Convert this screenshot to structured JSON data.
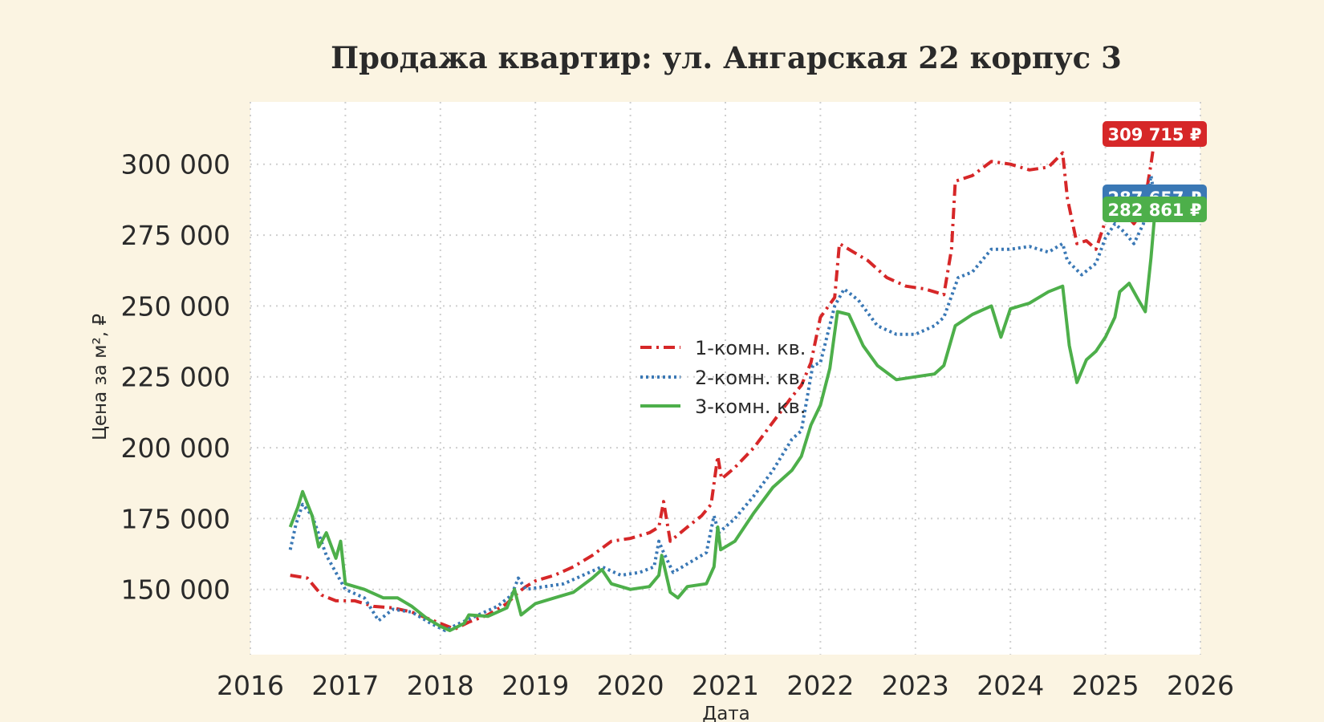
{
  "chart_data": {
    "type": "line",
    "title": "Продажа квартир: ул. Ангарская 22 корпус 3",
    "xlabel": "Дата",
    "ylabel": "Цена за м², ₽",
    "xlim": [
      2016,
      2026
    ],
    "ylim": [
      127000,
      322000
    ],
    "x_ticks": [
      2016,
      2017,
      2018,
      2019,
      2020,
      2021,
      2022,
      2023,
      2024,
      2025,
      2026
    ],
    "y_ticks": [
      150000,
      175000,
      200000,
      225000,
      250000,
      275000,
      300000
    ],
    "y_tick_labels": [
      "150 000",
      "175 000",
      "200 000",
      "225 000",
      "250 000",
      "275 000",
      "300 000"
    ],
    "x_tick_labels": [
      "2016",
      "2017",
      "2018",
      "2019",
      "2020",
      "2021",
      "2022",
      "2023",
      "2024",
      "2025",
      "2026"
    ],
    "grid": true,
    "legend_position": "center",
    "series": [
      {
        "name": "1-комн. кв.",
        "color": "#d62728",
        "style": "dash-dot",
        "last_label": "309 715 ₽",
        "points": [
          [
            2016.42,
            155000
          ],
          [
            2016.6,
            154000
          ],
          [
            2016.75,
            148000
          ],
          [
            2016.9,
            146000
          ],
          [
            2017.1,
            146000
          ],
          [
            2017.3,
            144000
          ],
          [
            2017.5,
            143500
          ],
          [
            2017.7,
            142000
          ],
          [
            2017.85,
            140000
          ],
          [
            2018.0,
            138000
          ],
          [
            2018.15,
            136000
          ],
          [
            2018.3,
            138500
          ],
          [
            2018.5,
            141000
          ],
          [
            2018.7,
            145000
          ],
          [
            2018.82,
            149000
          ],
          [
            2018.9,
            151000
          ],
          [
            2019.0,
            153000
          ],
          [
            2019.2,
            155000
          ],
          [
            2019.4,
            158000
          ],
          [
            2019.6,
            162000
          ],
          [
            2019.8,
            167000
          ],
          [
            2020.0,
            168000
          ],
          [
            2020.2,
            170000
          ],
          [
            2020.3,
            172000
          ],
          [
            2020.35,
            181000
          ],
          [
            2020.42,
            167000
          ],
          [
            2020.6,
            172000
          ],
          [
            2020.75,
            176000
          ],
          [
            2020.85,
            180000
          ],
          [
            2020.92,
            197000
          ],
          [
            2020.96,
            189000
          ],
          [
            2021.1,
            193000
          ],
          [
            2021.3,
            200000
          ],
          [
            2021.5,
            209000
          ],
          [
            2021.7,
            218000
          ],
          [
            2021.8,
            222000
          ],
          [
            2021.9,
            230000
          ],
          [
            2022.0,
            246000
          ],
          [
            2022.15,
            253000
          ],
          [
            2022.2,
            272000
          ],
          [
            2022.35,
            269000
          ],
          [
            2022.5,
            266000
          ],
          [
            2022.7,
            260000
          ],
          [
            2022.9,
            257000
          ],
          [
            2023.1,
            256000
          ],
          [
            2023.3,
            254000
          ],
          [
            2023.38,
            270000
          ],
          [
            2023.42,
            294000
          ],
          [
            2023.6,
            296000
          ],
          [
            2023.8,
            301000
          ],
          [
            2024.0,
            300000
          ],
          [
            2024.2,
            298000
          ],
          [
            2024.4,
            299000
          ],
          [
            2024.55,
            304000
          ],
          [
            2024.6,
            288000
          ],
          [
            2024.7,
            272000
          ],
          [
            2024.8,
            273000
          ],
          [
            2024.9,
            270000
          ],
          [
            2025.0,
            280000
          ],
          [
            2025.1,
            287000
          ],
          [
            2025.2,
            283000
          ],
          [
            2025.3,
            279000
          ],
          [
            2025.4,
            284000
          ],
          [
            2025.48,
            300000
          ],
          [
            2025.52,
            309715
          ]
        ]
      },
      {
        "name": "2-комн. кв.",
        "color": "#3a78b5",
        "style": "dotted",
        "last_label": "287 657 ₽",
        "points": [
          [
            2016.42,
            164000
          ],
          [
            2016.48,
            173000
          ],
          [
            2016.55,
            180000
          ],
          [
            2016.65,
            176000
          ],
          [
            2016.8,
            162000
          ],
          [
            2017.0,
            150000
          ],
          [
            2017.2,
            147000
          ],
          [
            2017.35,
            139000
          ],
          [
            2017.5,
            143000
          ],
          [
            2017.7,
            142000
          ],
          [
            2017.9,
            138000
          ],
          [
            2018.05,
            135500
          ],
          [
            2018.2,
            138000
          ],
          [
            2018.4,
            141000
          ],
          [
            2018.6,
            144000
          ],
          [
            2018.75,
            148000
          ],
          [
            2018.82,
            154000
          ],
          [
            2018.9,
            150000
          ],
          [
            2019.1,
            151000
          ],
          [
            2019.3,
            152000
          ],
          [
            2019.5,
            155000
          ],
          [
            2019.7,
            158000
          ],
          [
            2019.9,
            155000
          ],
          [
            2020.1,
            156000
          ],
          [
            2020.25,
            158000
          ],
          [
            2020.3,
            167000
          ],
          [
            2020.35,
            163000
          ],
          [
            2020.45,
            156000
          ],
          [
            2020.6,
            159000
          ],
          [
            2020.8,
            163000
          ],
          [
            2020.88,
            176000
          ],
          [
            2020.93,
            170000
          ],
          [
            2021.1,
            175000
          ],
          [
            2021.3,
            183000
          ],
          [
            2021.5,
            192000
          ],
          [
            2021.7,
            203000
          ],
          [
            2021.8,
            206000
          ],
          [
            2021.92,
            229000
          ],
          [
            2022.0,
            230000
          ],
          [
            2022.15,
            250000
          ],
          [
            2022.25,
            256000
          ],
          [
            2022.4,
            252000
          ],
          [
            2022.6,
            243000
          ],
          [
            2022.8,
            240000
          ],
          [
            2023.0,
            240000
          ],
          [
            2023.2,
            243000
          ],
          [
            2023.3,
            246000
          ],
          [
            2023.45,
            260000
          ],
          [
            2023.6,
            262000
          ],
          [
            2023.8,
            270000
          ],
          [
            2024.0,
            270000
          ],
          [
            2024.2,
            271000
          ],
          [
            2024.4,
            269000
          ],
          [
            2024.55,
            272000
          ],
          [
            2024.6,
            266000
          ],
          [
            2024.75,
            261000
          ],
          [
            2024.9,
            265000
          ],
          [
            2025.0,
            274000
          ],
          [
            2025.1,
            279000
          ],
          [
            2025.2,
            276000
          ],
          [
            2025.3,
            272000
          ],
          [
            2025.4,
            279000
          ],
          [
            2025.48,
            296000
          ],
          [
            2025.52,
            287657
          ]
        ]
      },
      {
        "name": "3-комн. кв.",
        "color": "#4daf4a",
        "style": "solid",
        "last_label": "282 861 ₽",
        "points": [
          [
            2016.42,
            172000
          ],
          [
            2016.5,
            179000
          ],
          [
            2016.55,
            184500
          ],
          [
            2016.65,
            176000
          ],
          [
            2016.72,
            165000
          ],
          [
            2016.8,
            170000
          ],
          [
            2016.9,
            161000
          ],
          [
            2016.95,
            167000
          ],
          [
            2017.0,
            152000
          ],
          [
            2017.2,
            150000
          ],
          [
            2017.4,
            147000
          ],
          [
            2017.55,
            147000
          ],
          [
            2017.7,
            144000
          ],
          [
            2017.85,
            140000
          ],
          [
            2018.0,
            137000
          ],
          [
            2018.1,
            135500
          ],
          [
            2018.25,
            138000
          ],
          [
            2018.3,
            141000
          ],
          [
            2018.5,
            140500
          ],
          [
            2018.7,
            143500
          ],
          [
            2018.78,
            150000
          ],
          [
            2018.85,
            141000
          ],
          [
            2019.0,
            145000
          ],
          [
            2019.2,
            147000
          ],
          [
            2019.4,
            149000
          ],
          [
            2019.6,
            154000
          ],
          [
            2019.7,
            157000
          ],
          [
            2019.8,
            152000
          ],
          [
            2020.0,
            150000
          ],
          [
            2020.2,
            151000
          ],
          [
            2020.3,
            155000
          ],
          [
            2020.33,
            162000
          ],
          [
            2020.42,
            149000
          ],
          [
            2020.5,
            147000
          ],
          [
            2020.6,
            151000
          ],
          [
            2020.8,
            152000
          ],
          [
            2020.88,
            158000
          ],
          [
            2020.92,
            172000
          ],
          [
            2020.95,
            164000
          ],
          [
            2021.1,
            167000
          ],
          [
            2021.3,
            177000
          ],
          [
            2021.5,
            186000
          ],
          [
            2021.7,
            192000
          ],
          [
            2021.8,
            197000
          ],
          [
            2021.9,
            208000
          ],
          [
            2022.0,
            215000
          ],
          [
            2022.1,
            228000
          ],
          [
            2022.18,
            248000
          ],
          [
            2022.3,
            247000
          ],
          [
            2022.45,
            236000
          ],
          [
            2022.6,
            229000
          ],
          [
            2022.8,
            224000
          ],
          [
            2023.0,
            225000
          ],
          [
            2023.2,
            226000
          ],
          [
            2023.3,
            229000
          ],
          [
            2023.42,
            243000
          ],
          [
            2023.6,
            247000
          ],
          [
            2023.8,
            250000
          ],
          [
            2023.9,
            239000
          ],
          [
            2024.0,
            249000
          ],
          [
            2024.2,
            251000
          ],
          [
            2024.4,
            255000
          ],
          [
            2024.55,
            257000
          ],
          [
            2024.62,
            236000
          ],
          [
            2024.7,
            223000
          ],
          [
            2024.8,
            231000
          ],
          [
            2024.9,
            234000
          ],
          [
            2025.0,
            239000
          ],
          [
            2025.1,
            246000
          ],
          [
            2025.15,
            255000
          ],
          [
            2025.25,
            258000
          ],
          [
            2025.35,
            252000
          ],
          [
            2025.42,
            248000
          ],
          [
            2025.48,
            267000
          ],
          [
            2025.52,
            282861
          ]
        ]
      }
    ]
  }
}
